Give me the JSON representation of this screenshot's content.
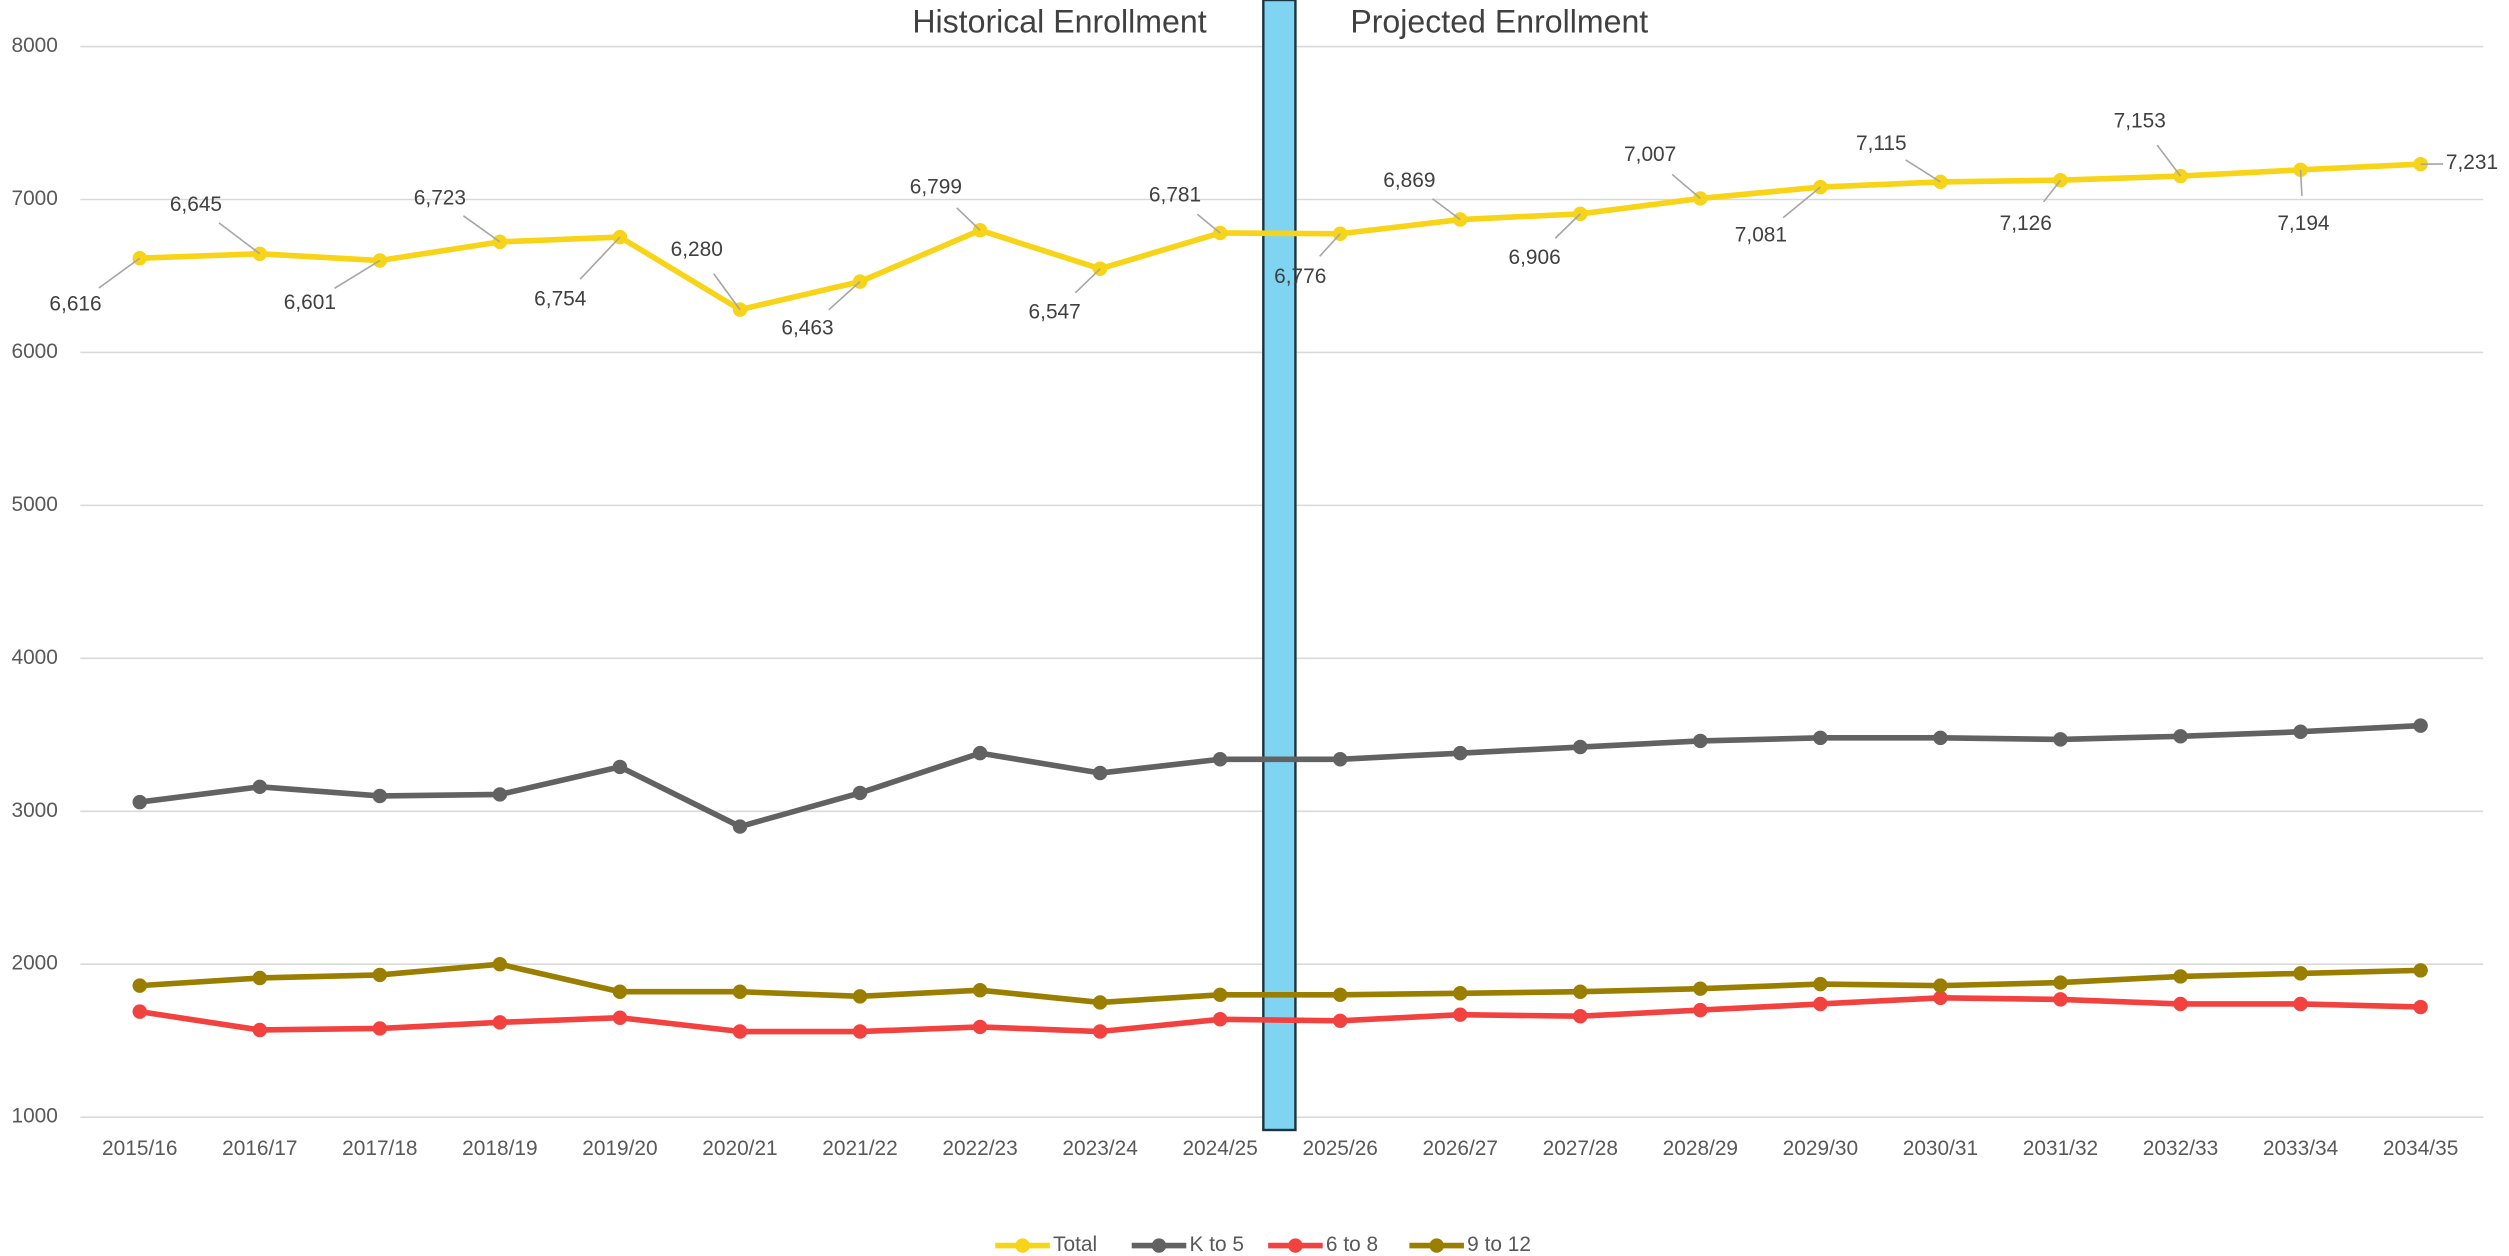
{
  "chart_data": {
    "type": "line",
    "annotations": [
      "Historical Enrollment",
      "Projected Enrollment"
    ],
    "categories": [
      "2015/16",
      "2016/17",
      "2017/18",
      "2018/19",
      "2019/20",
      "2020/21",
      "2021/22",
      "2022/23",
      "2023/24",
      "2024/25",
      "2025/26",
      "2026/27",
      "2027/28",
      "2028/29",
      "2029/30",
      "2030/31",
      "2031/32",
      "2032/33",
      "2033/34",
      "2034/35"
    ],
    "series": [
      {
        "name": "Total",
        "color": "#f7d417",
        "values": [
          6616,
          6645,
          6601,
          6723,
          6754,
          6280,
          6463,
          6799,
          6547,
          6781,
          6776,
          6869,
          6906,
          7007,
          7081,
          7115,
          7126,
          7153,
          7194,
          7231
        ],
        "value_labels": [
          "6,616",
          "6,645",
          "6,601",
          "6,723",
          "6,754",
          "6,280",
          "6,463",
          "6,799",
          "6,547",
          "6,781",
          "6,776",
          "6,869",
          "6,906",
          "7,007",
          "7,081",
          "7,115",
          "7,126",
          "7,153",
          "7,194",
          "7,231"
        ]
      },
      {
        "name": "K to 5",
        "color": "#626262",
        "values": [
          3060,
          3160,
          3100,
          3110,
          3290,
          2900,
          3120,
          3380,
          3250,
          3340,
          3340,
          3380,
          3420,
          3460,
          3480,
          3480,
          3470,
          3490,
          3520,
          3560
        ]
      },
      {
        "name": "6 to 8",
        "color": "#f2423f",
        "values": [
          1690,
          1570,
          1580,
          1620,
          1650,
          1560,
          1560,
          1590,
          1560,
          1640,
          1630,
          1670,
          1660,
          1700,
          1740,
          1780,
          1770,
          1740,
          1740,
          1720
        ]
      },
      {
        "name": "9 to 12",
        "color": "#9a7e00",
        "values": [
          1860,
          1910,
          1930,
          2000,
          1820,
          1820,
          1790,
          1830,
          1750,
          1800,
          1800,
          1810,
          1820,
          1840,
          1870,
          1860,
          1880,
          1920,
          1940,
          1960
        ]
      }
    ],
    "ylim": [
      1000,
      8000
    ],
    "yticks": [
      1000,
      2000,
      3000,
      4000,
      5000,
      6000,
      7000,
      8000
    ],
    "grid": true,
    "legend": "bottom"
  }
}
